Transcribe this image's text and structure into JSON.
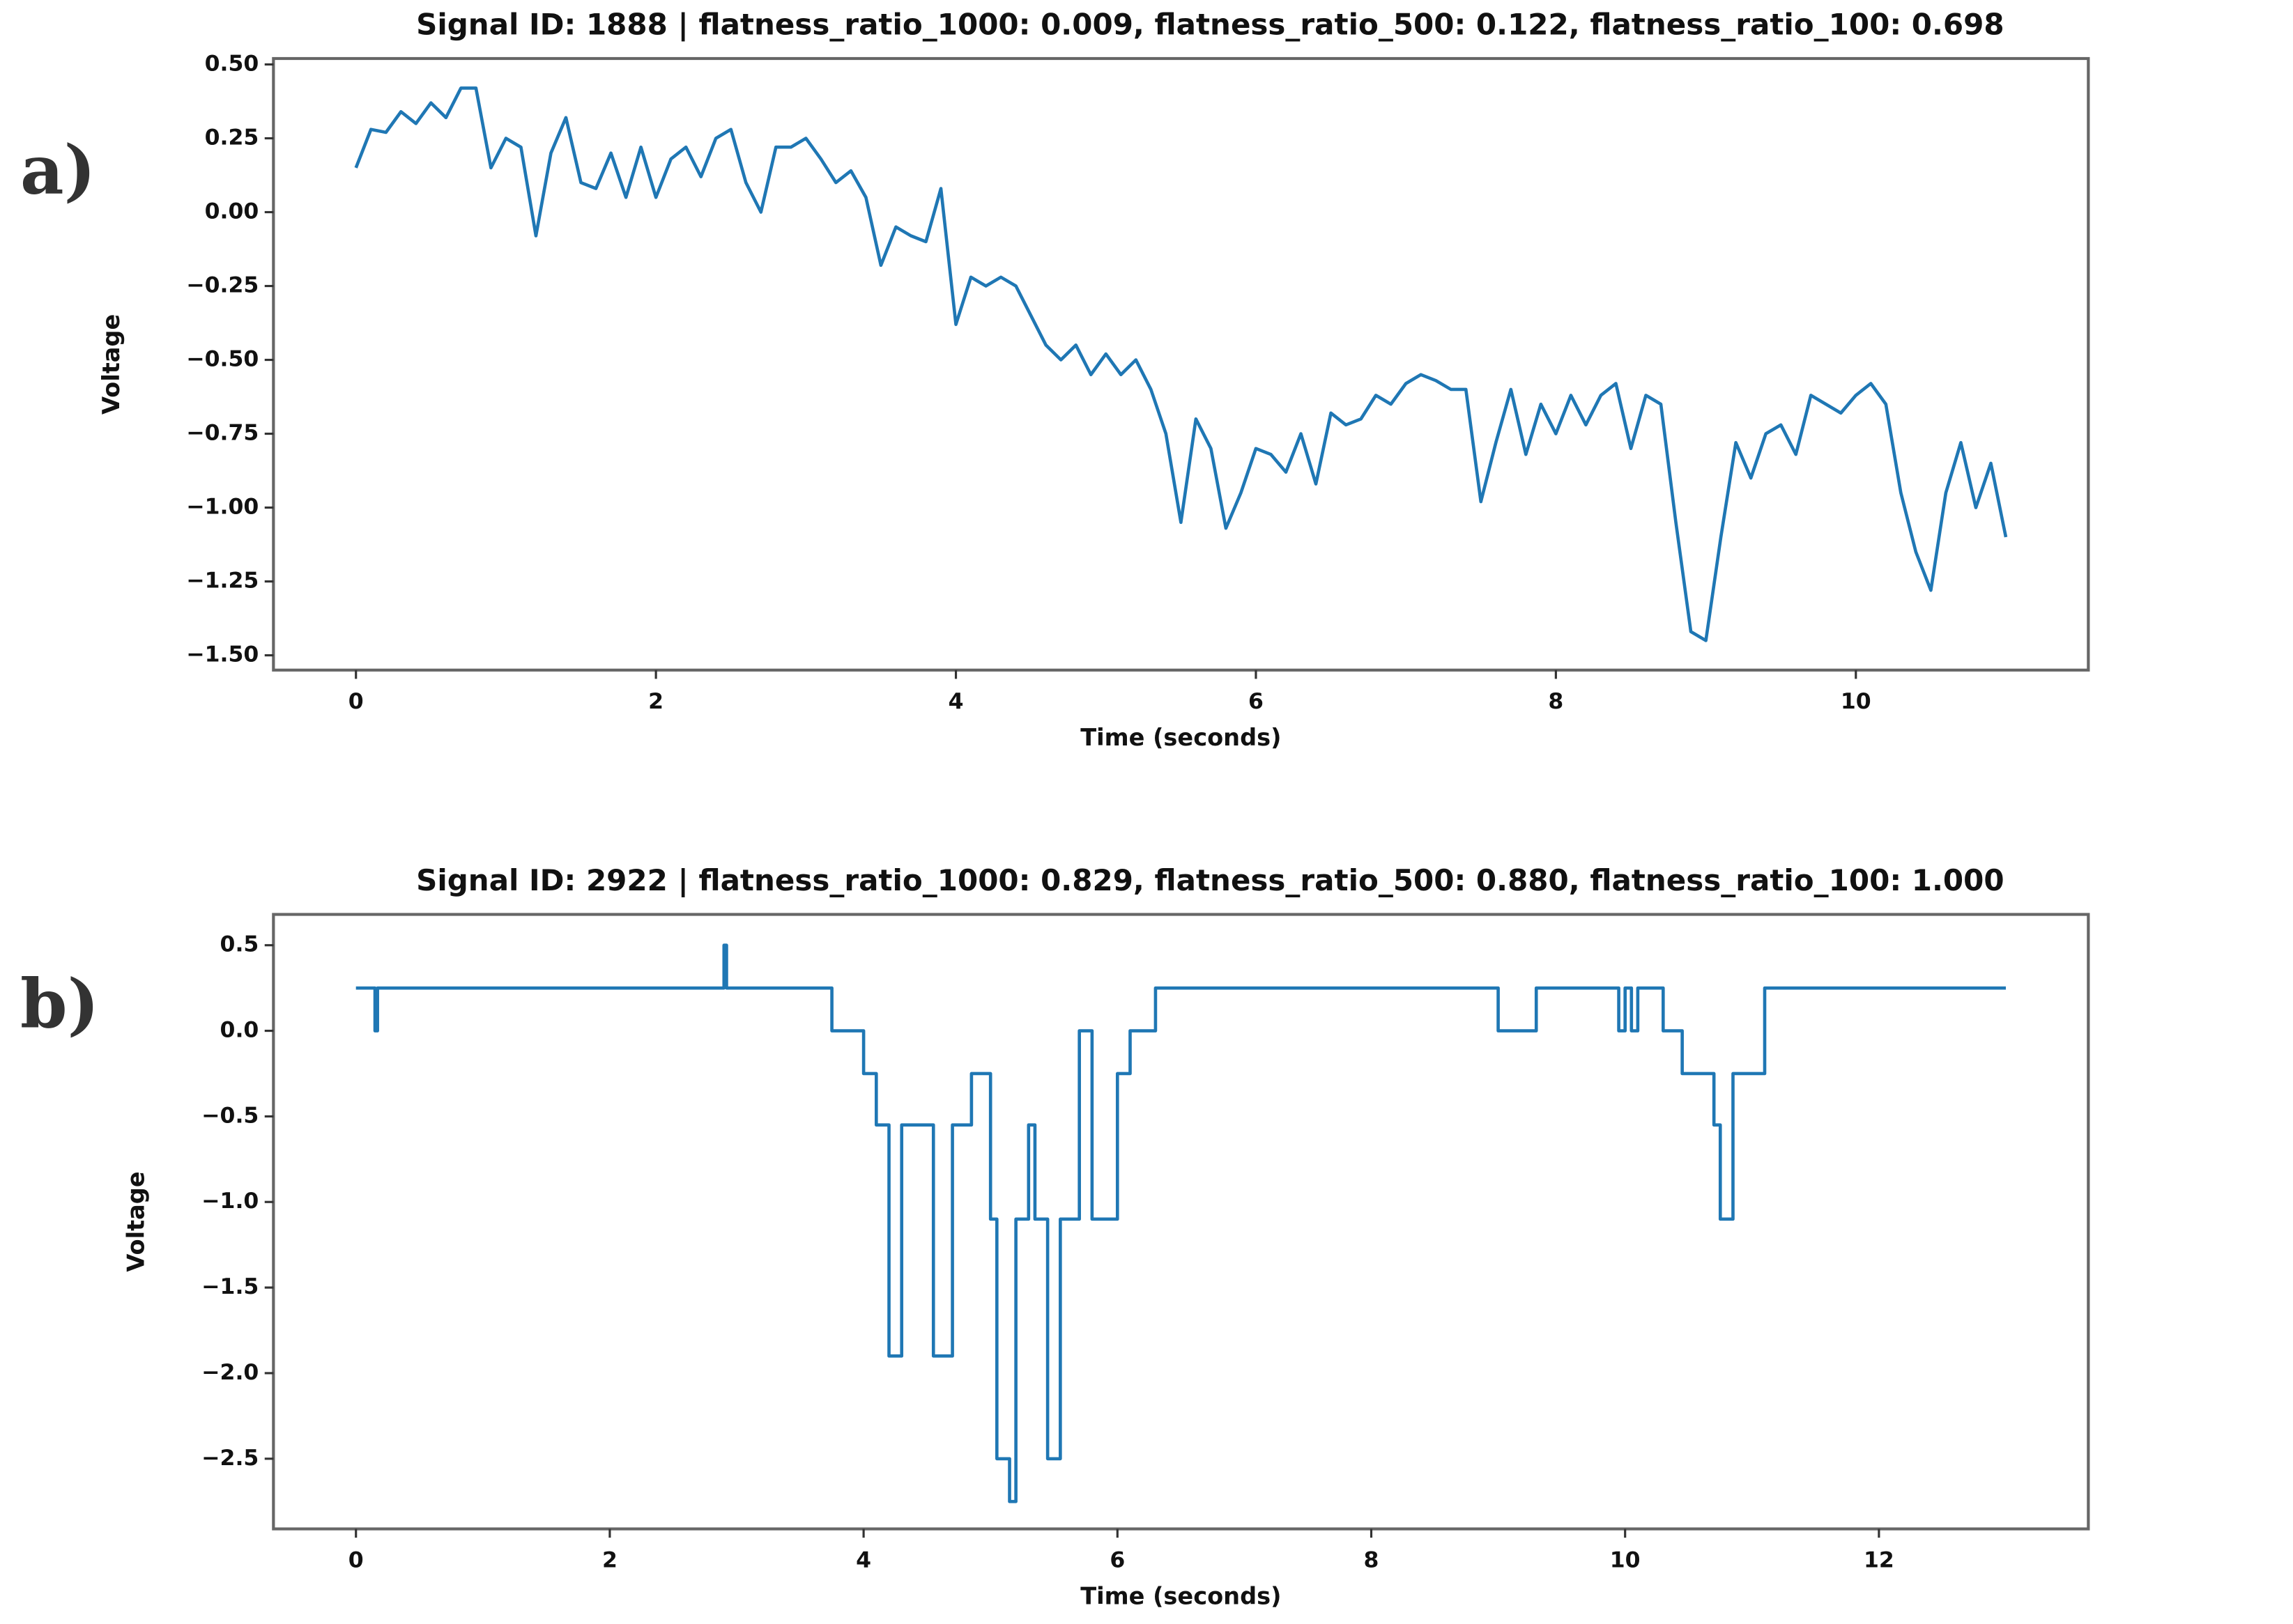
{
  "chart_data": [
    {
      "type": "line",
      "panel": "a)",
      "title": "Signal ID: 1888 | flatness_ratio_1000: 0.009, flatness_ratio_500: 0.122, flatness_ratio_100: 0.698",
      "x_label": "Time (seconds)",
      "y_label": "Voltage",
      "color": "#1f77b4",
      "xlim": [
        -0.55,
        11.55
      ],
      "ylim": [
        -1.55,
        0.52
      ],
      "xticks": [
        0,
        2,
        4,
        6,
        8,
        10
      ],
      "yticks": [
        {
          "value": 0.5,
          "label": "0.50"
        },
        {
          "value": 0.25,
          "label": "0.25"
        },
        {
          "value": 0,
          "label": "0.00"
        },
        {
          "value": -0.25,
          "label": "−0.25"
        },
        {
          "value": -0.5,
          "label": "−0.50"
        },
        {
          "value": -0.75,
          "label": "−0.75"
        },
        {
          "value": -1,
          "label": "−1.00"
        },
        {
          "value": -1.25,
          "label": "−1.25"
        },
        {
          "value": -1.5,
          "label": "−1.50"
        }
      ],
      "x": [
        0,
        0.1,
        0.2,
        0.3,
        0.4,
        0.5,
        0.6,
        0.7,
        0.8,
        0.9,
        1,
        1.1,
        1.2,
        1.3,
        1.4,
        1.5,
        1.6,
        1.7,
        1.8,
        1.9,
        2,
        2.1,
        2.2,
        2.3,
        2.4,
        2.5,
        2.6,
        2.7,
        2.8,
        2.9,
        3,
        3.1,
        3.2,
        3.3,
        3.4,
        3.5,
        3.6,
        3.7,
        3.8,
        3.9,
        4,
        4.1,
        4.2,
        4.3,
        4.4,
        4.5,
        4.6,
        4.7,
        4.8,
        4.9,
        5,
        5.1,
        5.2,
        5.3,
        5.4,
        5.5,
        5.6,
        5.7,
        5.8,
        5.9,
        6,
        6.1,
        6.2,
        6.3,
        6.4,
        6.5,
        6.6,
        6.7,
        6.8,
        6.9,
        7,
        7.1,
        7.2,
        7.3,
        7.4,
        7.5,
        7.6,
        7.7,
        7.8,
        7.9,
        8,
        8.1,
        8.2,
        8.3,
        8.4,
        8.5,
        8.6,
        8.7,
        8.8,
        8.9,
        9,
        9.1,
        9.2,
        9.3,
        9.4,
        9.5,
        9.6,
        9.7,
        9.8,
        9.9,
        10,
        10.1,
        10.2,
        10.3,
        10.4,
        10.5,
        10.6,
        10.7,
        10.8,
        10.9,
        11
      ],
      "series": [
        {
          "values": [
            0.15,
            0.28,
            0.27,
            0.34,
            0.3,
            0.37,
            0.32,
            0.42,
            0.42,
            0.15,
            0.25,
            0.22,
            -0.08,
            0.2,
            0.32,
            0.1,
            0.08,
            0.2,
            0.05,
            0.22,
            0.05,
            0.18,
            0.22,
            0.12,
            0.25,
            0.28,
            0.1,
            0,
            0.22,
            0.22,
            0.25,
            0.18,
            0.1,
            0.14,
            0.05,
            -0.18,
            -0.05,
            -0.08,
            -0.1,
            0.08,
            -0.38,
            -0.22,
            -0.25,
            -0.22,
            -0.25,
            -0.35,
            -0.45,
            -0.5,
            -0.45,
            -0.55,
            -0.48,
            -0.55,
            -0.5,
            -0.6,
            -0.75,
            -1.05,
            -0.7,
            -0.8,
            -1.07,
            -0.95,
            -0.8,
            -0.82,
            -0.88,
            -0.75,
            -0.92,
            -0.68,
            -0.72,
            -0.7,
            -0.62,
            -0.65,
            -0.58,
            -0.55,
            -0.57,
            -0.6,
            -0.6,
            -0.98,
            -0.78,
            -0.6,
            -0.82,
            -0.65,
            -0.75,
            -0.62,
            -0.72,
            -0.62,
            -0.58,
            -0.8,
            -0.62,
            -0.65,
            -1.05,
            -1.42,
            -1.45,
            -1.1,
            -0.78,
            -0.9,
            -0.75,
            -0.72,
            -0.82,
            -0.62,
            -0.65,
            -0.68,
            -0.62,
            -0.58,
            -0.65,
            -0.95,
            -1.15,
            -1.28,
            -0.95,
            -0.78,
            -1,
            -0.85,
            -1.1
          ]
        }
      ]
    },
    {
      "type": "line",
      "panel": "b)",
      "title": "Signal ID: 2922 | flatness_ratio_1000: 0.829, flatness_ratio_500: 0.880, flatness_ratio_100: 1.000",
      "x_label": "Time (seconds)",
      "y_label": "Voltage",
      "color": "#1f77b4",
      "xlim": [
        -0.65,
        13.65
      ],
      "ylim": [
        -2.91,
        0.68
      ],
      "xticks": [
        0,
        2,
        4,
        6,
        8,
        10,
        12
      ],
      "yticks": [
        {
          "value": 0.5,
          "label": "0.5"
        },
        {
          "value": 0,
          "label": "0.0"
        },
        {
          "value": -0.5,
          "label": "−0.5"
        },
        {
          "value": -1,
          "label": "−1.0"
        },
        {
          "value": -1.5,
          "label": "−1.5"
        },
        {
          "value": -2,
          "label": "−2.0"
        },
        {
          "value": -2.5,
          "label": "−2.5"
        }
      ],
      "x": [
        0,
        0.15,
        0.15,
        0.17,
        0.17,
        2.9,
        2.9,
        2.92,
        2.92,
        3.75,
        3.75,
        4,
        4,
        4.1,
        4.1,
        4.2,
        4.2,
        4.3,
        4.3,
        4.55,
        4.55,
        4.7,
        4.7,
        4.85,
        4.85,
        5,
        5,
        5.05,
        5.05,
        5.15,
        5.15,
        5.2,
        5.2,
        5.3,
        5.3,
        5.35,
        5.35,
        5.45,
        5.45,
        5.55,
        5.55,
        5.7,
        5.7,
        5.8,
        5.8,
        6,
        6,
        6.1,
        6.1,
        6.3,
        6.3,
        9,
        9,
        9.3,
        9.3,
        9.95,
        9.95,
        10,
        10,
        10.05,
        10.05,
        10.1,
        10.1,
        10.3,
        10.3,
        10.45,
        10.45,
        10.7,
        10.7,
        10.75,
        10.75,
        10.85,
        10.85,
        11.1,
        11.1,
        13
      ],
      "series": [
        {
          "values": [
            0.25,
            0.25,
            0,
            0,
            0.25,
            0.25,
            0.5,
            0.5,
            0.25,
            0.25,
            0,
            0,
            -0.25,
            -0.25,
            -0.55,
            -0.55,
            -1.9,
            -1.9,
            -0.55,
            -0.55,
            -1.9,
            -1.9,
            -0.55,
            -0.55,
            -0.25,
            -0.25,
            -1.1,
            -1.1,
            -2.5,
            -2.5,
            -2.75,
            -2.75,
            -1.1,
            -1.1,
            -0.55,
            -0.55,
            -1.1,
            -1.1,
            -2.5,
            -2.5,
            -1.1,
            -1.1,
            0,
            0,
            -1.1,
            -1.1,
            -0.25,
            -0.25,
            0,
            0,
            0.25,
            0.25,
            0,
            0,
            0.25,
            0.25,
            0,
            0,
            0.25,
            0.25,
            0,
            0,
            0.25,
            0.25,
            0,
            0,
            -0.25,
            -0.25,
            -0.55,
            -0.55,
            -1.1,
            -1.1,
            -0.25,
            -0.25,
            0.25,
            0.25
          ]
        }
      ]
    }
  ]
}
